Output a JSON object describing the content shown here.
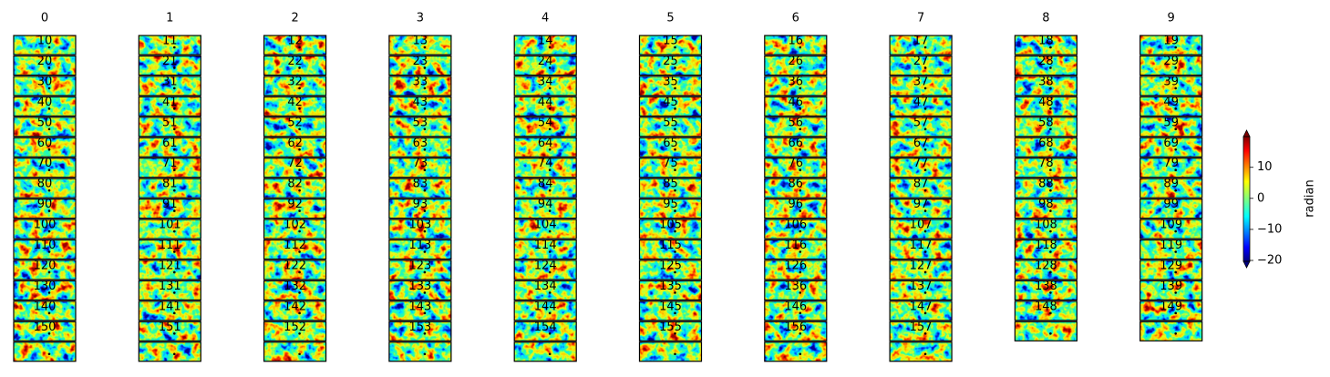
{
  "columns": [
    {
      "title": "0",
      "panels": [
        "10",
        "20",
        "30",
        "40",
        "50",
        "60",
        "70",
        "80",
        "90",
        "100",
        "110",
        "120",
        "130",
        "140",
        "150",
        null
      ]
    },
    {
      "title": "1",
      "panels": [
        "11",
        "21",
        "31",
        "41",
        "51",
        "61",
        "71",
        "81",
        "91",
        "101",
        "111",
        "121",
        "131",
        "141",
        "151",
        null
      ]
    },
    {
      "title": "2",
      "panels": [
        "12",
        "22",
        "32",
        "42",
        "52",
        "62",
        "72",
        "82",
        "92",
        "102",
        "112",
        "122",
        "132",
        "142",
        "152",
        null
      ]
    },
    {
      "title": "3",
      "panels": [
        "13",
        "23",
        "33",
        "43",
        "53",
        "63",
        "73",
        "83",
        "93",
        "103",
        "113",
        "123",
        "133",
        "143",
        "153",
        null
      ]
    },
    {
      "title": "4",
      "panels": [
        "14",
        "24",
        "34",
        "44",
        "54",
        "64",
        "74",
        "84",
        "94",
        "104",
        "114",
        "124",
        "134",
        "144",
        "154",
        null
      ]
    },
    {
      "title": "5",
      "panels": [
        "15",
        "25",
        "35",
        "45",
        "55",
        "65",
        "75",
        "85",
        "95",
        "105",
        "115",
        "125",
        "135",
        "145",
        "155",
        null
      ]
    },
    {
      "title": "6",
      "panels": [
        "16",
        "26",
        "36",
        "46",
        "56",
        "66",
        "76",
        "86",
        "96",
        "106",
        "116",
        "126",
        "136",
        "146",
        "156",
        null
      ]
    },
    {
      "title": "7",
      "panels": [
        "17",
        "27",
        "37",
        "47",
        "57",
        "67",
        "77",
        "87",
        "97",
        "107",
        "117",
        "127",
        "137",
        "147",
        "157",
        null
      ]
    },
    {
      "title": "8",
      "panels": [
        "18",
        "28",
        "38",
        "48",
        "58",
        "68",
        "78",
        "88",
        "98",
        "108",
        "118",
        "128",
        "138",
        "148",
        null
      ]
    },
    {
      "title": "9",
      "panels": [
        "19",
        "29",
        "39",
        "49",
        "59",
        "69",
        "79",
        "89",
        "99",
        "109",
        "119",
        "129",
        "139",
        "149",
        null
      ]
    }
  ],
  "colorbar": {
    "label": "radian",
    "lim": [
      -20.3,
      19.9
    ],
    "ticks": [
      10,
      0,
      {
        "value": -10,
        "label": "−10"
      },
      {
        "value": -20,
        "label": "−20"
      }
    ]
  }
}
